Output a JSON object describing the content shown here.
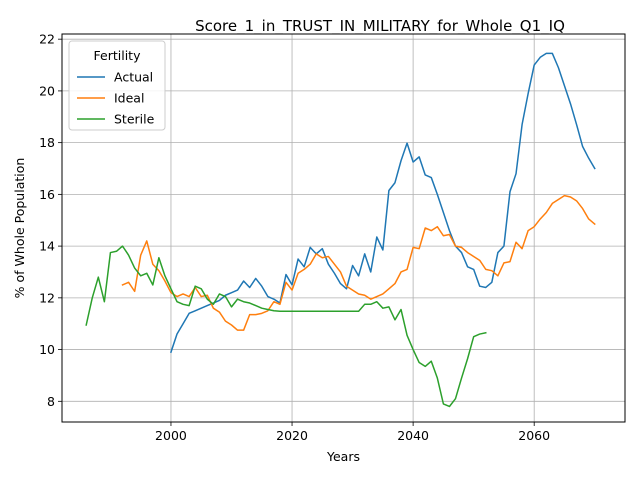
{
  "chart_data": {
    "type": "line",
    "title": "Score_1_in_TRUST_IN_MILITARY_for_Whole_Q1_IQ",
    "xlabel": "Years",
    "ylabel": "% of Whole Population",
    "xlim": [
      1982,
      2075
    ],
    "ylim": [
      7.2,
      22.2
    ],
    "xticks": [
      2000,
      2020,
      2040,
      2060
    ],
    "yticks": [
      8,
      10,
      12,
      14,
      16,
      18,
      20,
      22
    ],
    "grid": true,
    "legend": {
      "title": "Fertility",
      "placement": "top-left"
    },
    "series": [
      {
        "name": "Actual",
        "color": "#1f77b4",
        "x": [
          2000,
          2001,
          2002,
          2003,
          2004,
          2005,
          2006,
          2007,
          2008,
          2009,
          2010,
          2011,
          2012,
          2013,
          2014,
          2015,
          2016,
          2017,
          2018,
          2019,
          2020,
          2021,
          2022,
          2023,
          2024,
          2025,
          2026,
          2027,
          2028,
          2029,
          2030,
          2031,
          2032,
          2033,
          2034,
          2035,
          2036,
          2037,
          2038,
          2039,
          2040,
          2041,
          2042,
          2043,
          2044,
          2045,
          2046,
          2047,
          2048,
          2049,
          2050,
          2051,
          2052,
          2053,
          2054,
          2055,
          2056,
          2057,
          2058,
          2059,
          2060,
          2061,
          2062,
          2063,
          2064,
          2065,
          2066,
          2067,
          2068,
          2069,
          2070
        ],
        "y": [
          9.9,
          10.6,
          11.0,
          11.4,
          11.5,
          11.6,
          11.7,
          11.8,
          11.9,
          12.1,
          12.2,
          12.3,
          12.65,
          12.4,
          12.75,
          12.45,
          12.05,
          11.95,
          11.8,
          12.9,
          12.5,
          13.5,
          13.2,
          13.95,
          13.7,
          13.9,
          13.3,
          12.95,
          12.55,
          12.35,
          13.25,
          12.85,
          13.7,
          13.0,
          14.35,
          13.85,
          16.15,
          16.45,
          17.3,
          17.98,
          17.25,
          17.45,
          16.75,
          16.65,
          16.0,
          15.3,
          14.6,
          14.0,
          13.75,
          13.2,
          13.1,
          12.45,
          12.4,
          12.6,
          13.75,
          14.0,
          16.1,
          16.8,
          18.7,
          19.9,
          21.0,
          21.3,
          21.45,
          21.45,
          20.9,
          20.2,
          19.5,
          18.7,
          17.85,
          17.4,
          17.0
        ]
      },
      {
        "name": "Ideal",
        "color": "#ff7f0e",
        "x": [
          1992,
          1993,
          1994,
          1995,
          1996,
          1997,
          1998,
          1999,
          2000,
          2001,
          2002,
          2003,
          2004,
          2005,
          2006,
          2007,
          2008,
          2009,
          2010,
          2011,
          2012,
          2013,
          2014,
          2015,
          2016,
          2017,
          2018,
          2019,
          2020,
          2021,
          2022,
          2023,
          2024,
          2025,
          2026,
          2027,
          2028,
          2029,
          2030,
          2031,
          2032,
          2033,
          2034,
          2035,
          2036,
          2037,
          2038,
          2039,
          2040,
          2041,
          2042,
          2043,
          2044,
          2045,
          2046,
          2047,
          2048,
          2049,
          2050,
          2051,
          2052,
          2053,
          2054,
          2055,
          2056,
          2057,
          2058,
          2059,
          2060,
          2061,
          2062,
          2063,
          2064,
          2065,
          2066,
          2067,
          2068,
          2069,
          2070
        ],
        "y": [
          12.5,
          12.6,
          12.25,
          13.65,
          14.2,
          13.3,
          13.05,
          12.65,
          12.2,
          12.05,
          12.15,
          12.05,
          12.4,
          12.05,
          12.1,
          11.6,
          11.45,
          11.1,
          10.95,
          10.75,
          10.75,
          11.35,
          11.35,
          11.4,
          11.5,
          11.85,
          11.75,
          12.6,
          12.3,
          12.95,
          13.1,
          13.3,
          13.7,
          13.55,
          13.6,
          13.3,
          13.0,
          12.45,
          12.3,
          12.15,
          12.1,
          11.95,
          12.05,
          12.15,
          12.35,
          12.55,
          13.0,
          13.1,
          13.95,
          13.9,
          14.7,
          14.6,
          14.75,
          14.4,
          14.45,
          14.0,
          13.95,
          13.75,
          13.6,
          13.45,
          13.1,
          13.05,
          12.85,
          13.35,
          13.4,
          14.15,
          13.9,
          14.6,
          14.75,
          15.05,
          15.3,
          15.65,
          15.8,
          15.95,
          15.9,
          15.75,
          15.45,
          15.05,
          14.85
        ]
      },
      {
        "name": "Sterile",
        "color": "#2ca02c",
        "x": [
          1986,
          1987,
          1988,
          1989,
          1990,
          1991,
          1992,
          1993,
          1994,
          1995,
          1996,
          1997,
          1998,
          1999,
          2000,
          2001,
          2002,
          2003,
          2004,
          2005,
          2006,
          2007,
          2008,
          2009,
          2010,
          2011,
          2012,
          2013,
          2014,
          2015,
          2016,
          2017,
          2018,
          2019,
          2020,
          2021,
          2022,
          2023,
          2024,
          2025,
          2026,
          2027,
          2028,
          2029,
          2030,
          2031,
          2032,
          2033,
          2034,
          2035,
          2036,
          2037,
          2038,
          2039,
          2040,
          2041,
          2042,
          2043,
          2044,
          2045,
          2046,
          2047,
          2048,
          2049,
          2050,
          2051,
          2052
        ],
        "y": [
          10.95,
          12.0,
          12.8,
          11.85,
          13.75,
          13.8,
          14.0,
          13.65,
          13.15,
          12.85,
          12.95,
          12.5,
          13.55,
          12.85,
          12.35,
          11.85,
          11.75,
          11.7,
          12.45,
          12.35,
          11.95,
          11.75,
          12.15,
          12.05,
          11.65,
          11.95,
          11.85,
          11.8,
          11.7,
          11.6,
          11.55,
          11.5,
          11.48,
          11.48,
          11.48,
          11.48,
          11.48,
          11.48,
          11.48,
          11.48,
          11.48,
          11.48,
          11.48,
          11.48,
          11.48,
          11.48,
          11.75,
          11.75,
          11.85,
          11.6,
          11.65,
          11.15,
          11.55,
          10.55,
          10.0,
          9.5,
          9.35,
          9.55,
          8.9,
          7.9,
          7.8,
          8.1,
          8.9,
          9.65,
          10.5,
          10.6,
          10.65
        ]
      }
    ]
  }
}
